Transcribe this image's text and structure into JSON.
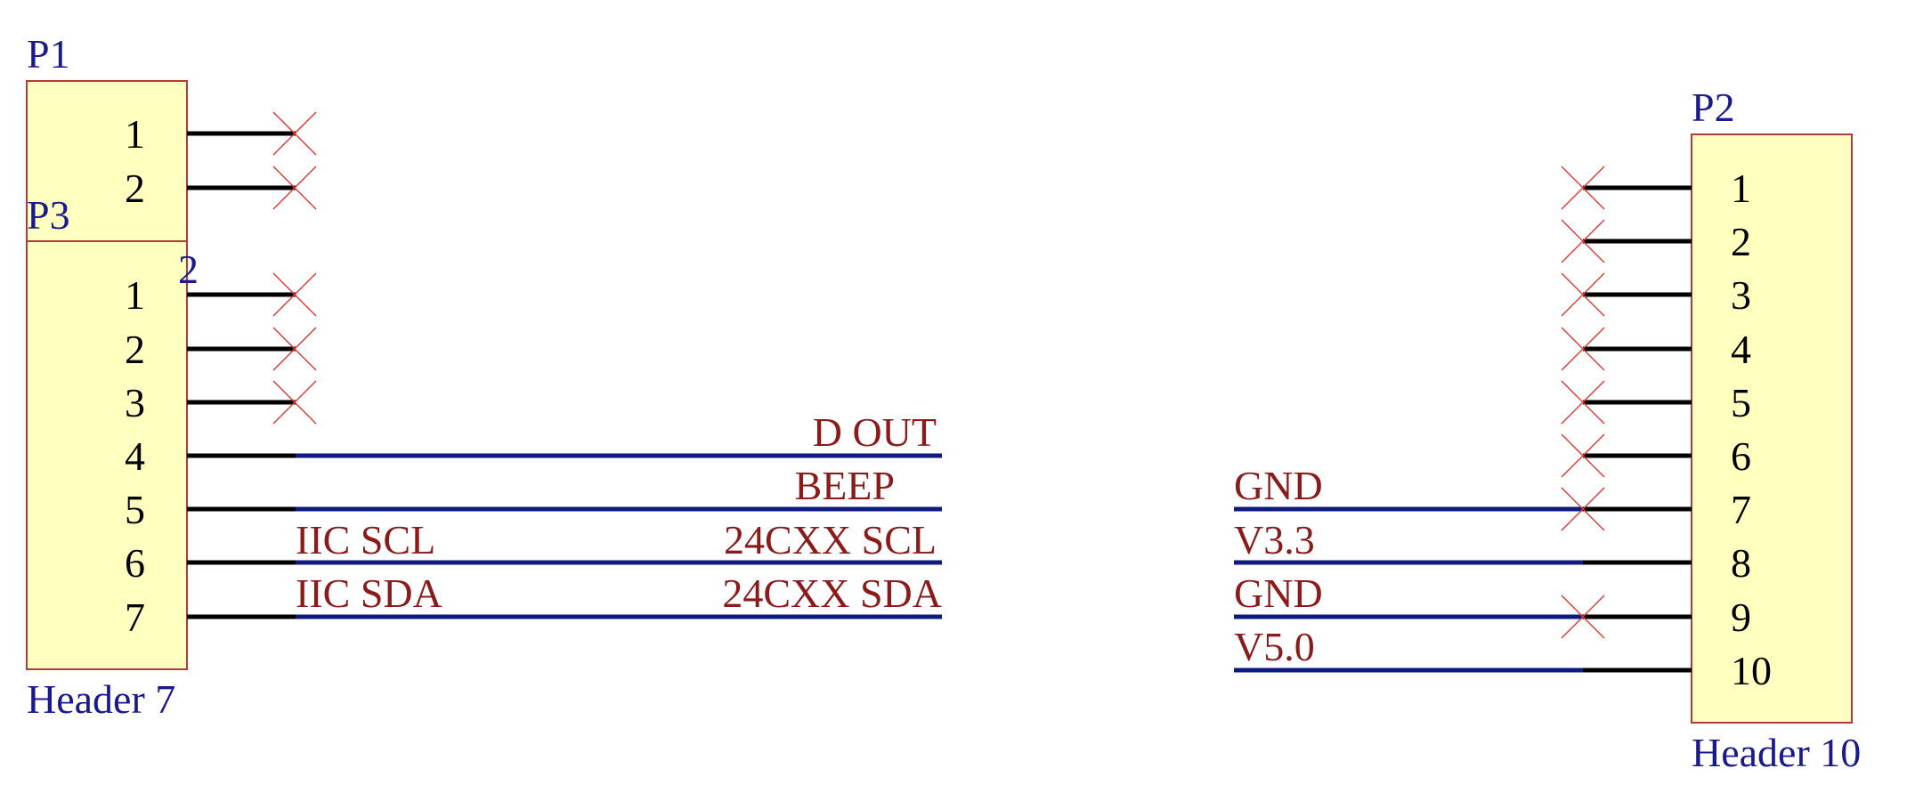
{
  "components": {
    "p1": {
      "designator": "P1",
      "pins": [
        "1",
        "2"
      ],
      "overlap_label": "2"
    },
    "p3": {
      "designator": "P3",
      "pins": [
        "1",
        "2",
        "3",
        "4",
        "5",
        "6",
        "7"
      ],
      "value": "Header 7"
    },
    "p2": {
      "designator": "P2",
      "pins": [
        "1",
        "2",
        "3",
        "4",
        "5",
        "6",
        "7",
        "8",
        "9",
        "10"
      ],
      "value": "Header 10"
    }
  },
  "nets": {
    "p3_left": {
      "pin5": "IIC SCL",
      "pin6": "IIC SDA"
    },
    "p3_right": {
      "pin3": "D OUT",
      "pin4": "BEEP",
      "pin5": "24CXX SCL",
      "pin6": "24CXX SDA"
    },
    "p2_left": {
      "pin6": "GND",
      "pin7": "V3.3",
      "pin8": "GND",
      "pin9": "V5.0"
    }
  },
  "colors": {
    "designator": "#1a1a8c",
    "net_label": "#8b1a1a",
    "wire": "#0d1a80",
    "no_connect": "#e23b3b",
    "component_body": "#ffffc0",
    "component_border": "#b33a3a"
  }
}
